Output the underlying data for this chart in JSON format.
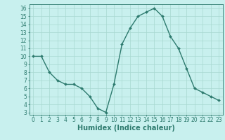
{
  "x": [
    0,
    1,
    2,
    3,
    4,
    5,
    6,
    7,
    8,
    9,
    10,
    11,
    12,
    13,
    14,
    15,
    16,
    17,
    18,
    19,
    20,
    21,
    22,
    23
  ],
  "y": [
    10,
    10,
    8,
    7,
    6.5,
    6.5,
    6,
    5,
    3.5,
    3,
    6.5,
    11.5,
    13.5,
    15,
    15.5,
    16,
    15,
    12.5,
    11,
    8.5,
    6,
    5.5,
    5,
    4.5
  ],
  "line_color": "#2d7a6e",
  "marker": "D",
  "marker_size": 2,
  "bg_color": "#c8f0ee",
  "xlabel": "Humidex (Indice chaleur)",
  "xlim": [
    -0.5,
    23.5
  ],
  "ylim": [
    2.7,
    16.5
  ],
  "yticks": [
    3,
    4,
    5,
    6,
    7,
    8,
    9,
    10,
    11,
    12,
    13,
    14,
    15,
    16
  ],
  "xticks": [
    0,
    1,
    2,
    3,
    4,
    5,
    6,
    7,
    8,
    9,
    10,
    11,
    12,
    13,
    14,
    15,
    16,
    17,
    18,
    19,
    20,
    21,
    22,
    23
  ],
  "tick_label_fontsize": 5.5,
  "xlabel_fontsize": 7,
  "line_width": 1.0,
  "grid_color": "#a8d8d0",
  "spine_color": "#2d7a6e"
}
